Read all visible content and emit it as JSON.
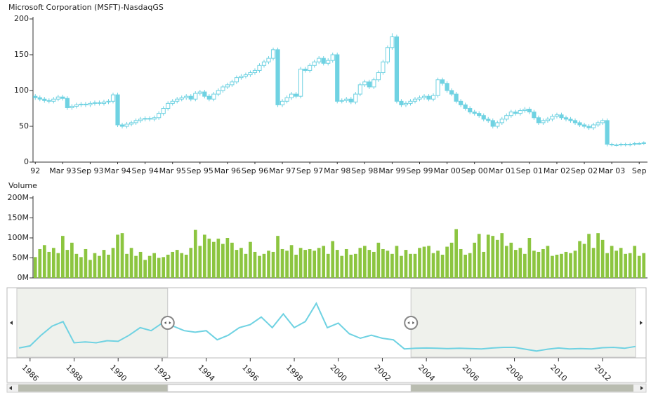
{
  "chart_data": [
    {
      "type": "candlestick",
      "title": "Microsoft Corporation (MSFT)-NasdaqGS",
      "color": "#6fd2e2",
      "categories": [
        "92",
        null,
        null,
        null,
        null,
        null,
        "Mar 93",
        null,
        null,
        null,
        null,
        null,
        "Sep 93",
        null,
        null,
        null,
        null,
        null,
        "Mar 94",
        null,
        null,
        null,
        null,
        null,
        "Sep 94",
        null,
        null,
        null,
        null,
        null,
        "Mar 95",
        null,
        null,
        null,
        null,
        null,
        "Sep 95",
        null,
        null,
        null,
        null,
        null,
        "Mar 96",
        null,
        null,
        null,
        null,
        null,
        "Sep 96",
        null,
        null,
        null,
        null,
        null,
        "Mar 97",
        null,
        null,
        null,
        null,
        null,
        "Sep 97",
        null,
        null,
        null,
        null,
        null,
        "Mar 98",
        null,
        null,
        null,
        null,
        null,
        "Sep 98",
        null,
        null,
        null,
        null,
        null,
        "Mar 99",
        null,
        null,
        null,
        null,
        null,
        "Sep 99",
        null,
        null,
        null,
        null,
        null,
        "Mar 00",
        null,
        null,
        null,
        null,
        null,
        "Sep 00",
        null,
        null,
        null,
        null,
        null,
        "Mar 01",
        null,
        null,
        null,
        null,
        null,
        "Sep 01",
        null,
        null,
        null,
        null,
        null,
        "Mar 02",
        null,
        null,
        null,
        null,
        null,
        "Sep 02",
        null,
        null,
        null,
        null,
        null,
        "Mar 03",
        null,
        null,
        null,
        null,
        null,
        "Sep",
        null
      ],
      "open": [
        92,
        90,
        88,
        86,
        85,
        88,
        91,
        89,
        76,
        78,
        80,
        81,
        80,
        82,
        83,
        82,
        84,
        85,
        94,
        52,
        50,
        53,
        55,
        58,
        60,
        61,
        60,
        62,
        68,
        75,
        82,
        85,
        88,
        90,
        92,
        88,
        96,
        98,
        92,
        88,
        95,
        100,
        105,
        108,
        112,
        118,
        120,
        122,
        125,
        128,
        135,
        140,
        145,
        157,
        80,
        85,
        90,
        95,
        92,
        130,
        128,
        135,
        140,
        145,
        138,
        142,
        150,
        85,
        86,
        88,
        84,
        95,
        108,
        112,
        105,
        115,
        125,
        140,
        160,
        175,
        85,
        80,
        82,
        85,
        88,
        90,
        92,
        88,
        93,
        115,
        110,
        100,
        95,
        85,
        80,
        75,
        70,
        68,
        65,
        60,
        58,
        50,
        55,
        60,
        65,
        70,
        68,
        72,
        74,
        70,
        62,
        55,
        58,
        60,
        64,
        66,
        62,
        60,
        58,
        55,
        52,
        50,
        48,
        52,
        55,
        58,
        25,
        24,
        24,
        25,
        24,
        25,
        26,
        26
      ],
      "high": [
        95,
        93,
        91,
        89,
        91,
        94,
        94,
        92,
        81,
        83,
        84,
        84,
        85,
        86,
        86,
        87,
        88,
        97,
        97,
        55,
        56,
        58,
        61,
        63,
        64,
        64,
        65,
        71,
        78,
        85,
        88,
        91,
        93,
        95,
        95,
        99,
        101,
        101,
        95,
        98,
        103,
        108,
        111,
        115,
        121,
        123,
        125,
        128,
        131,
        138,
        143,
        148,
        160,
        160,
        88,
        93,
        98,
        98,
        133,
        133,
        138,
        143,
        148,
        148,
        145,
        153,
        153,
        89,
        91,
        91,
        98,
        111,
        115,
        115,
        118,
        128,
        143,
        163,
        180,
        178,
        88,
        85,
        88,
        91,
        93,
        95,
        95,
        96,
        118,
        118,
        113,
        103,
        98,
        88,
        83,
        78,
        73,
        71,
        68,
        63,
        61,
        58,
        63,
        68,
        73,
        73,
        75,
        77,
        77,
        73,
        65,
        61,
        63,
        67,
        69,
        69,
        65,
        63,
        61,
        58,
        55,
        53,
        55,
        58,
        61,
        61,
        27,
        26,
        27,
        27,
        27,
        28,
        28,
        29
      ],
      "low": [
        87,
        85,
        83,
        82,
        82,
        85,
        86,
        73,
        73,
        75,
        77,
        77,
        77,
        79,
        79,
        79,
        81,
        82,
        49,
        47,
        47,
        50,
        52,
        55,
        57,
        57,
        57,
        59,
        65,
        72,
        79,
        82,
        85,
        87,
        85,
        85,
        93,
        89,
        85,
        85,
        92,
        97,
        102,
        105,
        109,
        115,
        117,
        119,
        122,
        125,
        132,
        137,
        142,
        77,
        77,
        82,
        87,
        89,
        89,
        125,
        125,
        132,
        137,
        135,
        135,
        139,
        82,
        82,
        83,
        81,
        81,
        92,
        105,
        102,
        102,
        112,
        122,
        137,
        157,
        82,
        77,
        77,
        79,
        82,
        85,
        87,
        85,
        85,
        90,
        107,
        97,
        92,
        82,
        77,
        72,
        67,
        65,
        62,
        57,
        55,
        47,
        47,
        52,
        57,
        62,
        65,
        65,
        69,
        67,
        59,
        52,
        52,
        55,
        57,
        61,
        59,
        57,
        55,
        52,
        49,
        47,
        45,
        45,
        49,
        52,
        22,
        22,
        22,
        22,
        22,
        22,
        23,
        24,
        24
      ],
      "close": [
        90,
        88,
        86,
        85,
        88,
        91,
        89,
        76,
        78,
        80,
        81,
        80,
        82,
        83,
        82,
        84,
        85,
        94,
        52,
        50,
        53,
        55,
        58,
        60,
        61,
        60,
        62,
        68,
        75,
        82,
        85,
        88,
        90,
        92,
        88,
        96,
        98,
        92,
        88,
        95,
        100,
        105,
        108,
        112,
        118,
        120,
        122,
        125,
        128,
        135,
        140,
        145,
        157,
        80,
        85,
        90,
        95,
        92,
        130,
        128,
        135,
        140,
        145,
        138,
        142,
        150,
        85,
        86,
        88,
        84,
        95,
        108,
        112,
        105,
        115,
        125,
        140,
        160,
        175,
        85,
        80,
        82,
        85,
        88,
        90,
        92,
        88,
        93,
        115,
        110,
        100,
        95,
        85,
        80,
        75,
        70,
        68,
        65,
        60,
        58,
        50,
        55,
        60,
        65,
        70,
        68,
        72,
        74,
        70,
        62,
        55,
        58,
        60,
        64,
        66,
        62,
        60,
        58,
        55,
        52,
        50,
        48,
        52,
        55,
        58,
        25,
        24,
        24,
        25,
        24,
        25,
        26,
        26,
        27
      ],
      "ylim": [
        0,
        200
      ],
      "yticks": [
        0,
        50,
        100,
        150,
        200
      ]
    },
    {
      "type": "bar",
      "title": "Volume",
      "color": "#8cc540",
      "values": [
        52,
        72,
        82,
        65,
        75,
        62,
        105,
        70,
        88,
        60,
        52,
        72,
        45,
        62,
        55,
        70,
        58,
        75,
        108,
        112,
        60,
        75,
        55,
        65,
        45,
        55,
        62,
        50,
        52,
        58,
        65,
        70,
        62,
        58,
        75,
        120,
        80,
        108,
        98,
        90,
        98,
        85,
        100,
        88,
        70,
        75,
        60,
        90,
        65,
        55,
        60,
        68,
        65,
        105,
        72,
        68,
        82,
        58,
        75,
        70,
        72,
        68,
        75,
        80,
        60,
        92,
        70,
        55,
        72,
        58,
        60,
        75,
        80,
        70,
        65,
        88,
        72,
        68,
        60,
        80,
        55,
        70,
        60,
        60,
        75,
        78,
        80,
        62,
        68,
        58,
        78,
        88,
        122,
        72,
        58,
        62,
        88,
        110,
        65,
        108,
        105,
        95,
        112,
        80,
        88,
        70,
        75,
        60,
        100,
        68,
        65,
        72,
        80,
        55,
        58,
        60,
        65,
        62,
        68,
        92,
        85,
        110,
        75,
        112,
        95,
        62,
        80,
        68,
        75,
        60,
        62,
        80,
        55,
        62
      ],
      "ylim": [
        0,
        200
      ],
      "yticks": [
        {
          "value": 0,
          "label": "0M"
        },
        {
          "value": 50,
          "label": "50M"
        },
        {
          "value": 100,
          "label": "100M"
        },
        {
          "value": 150,
          "label": "150M"
        },
        {
          "value": 200,
          "label": "200M"
        }
      ]
    },
    {
      "type": "line",
      "color": "#6fd2e2",
      "x": [
        1985.5,
        1986,
        1986.5,
        1987,
        1987.5,
        1988,
        1988.5,
        1989,
        1989.5,
        1990,
        1990.5,
        1991,
        1991.5,
        1992,
        1992.5,
        1993,
        1993.5,
        1994,
        1994.5,
        1995,
        1995.5,
        1996,
        1996.5,
        1997,
        1997.5,
        1998,
        1998.5,
        1999,
        1999.5,
        2000,
        2000.5,
        2001,
        2001.5,
        2002,
        2002.5,
        2003,
        2003.5,
        2004,
        2004.5,
        2005,
        2005.5,
        2006,
        2006.5,
        2007,
        2007.5,
        2008,
        2008.5,
        2009,
        2009.5,
        2010,
        2010.5,
        2011,
        2011.5,
        2012,
        2012.5,
        2013,
        2013.5
      ],
      "values": [
        28,
        35,
        70,
        100,
        115,
        45,
        48,
        45,
        52,
        50,
        70,
        95,
        85,
        110,
        100,
        85,
        80,
        85,
        55,
        70,
        95,
        105,
        130,
        95,
        140,
        95,
        115,
        175,
        95,
        110,
        75,
        60,
        70,
        60,
        55,
        25,
        27,
        28,
        27,
        26,
        27,
        26,
        25,
        28,
        30,
        30,
        24,
        18,
        24,
        28,
        25,
        26,
        25,
        29,
        30,
        27,
        33
      ],
      "xlim": [
        1985.4,
        2013.5
      ],
      "ylim": [
        0,
        215
      ],
      "xticks": [
        1986,
        1988,
        1990,
        1992,
        1994,
        1996,
        1998,
        2000,
        2002,
        2004,
        2006,
        2008,
        2010,
        2012
      ],
      "selection": [
        1992.25,
        2003.3
      ]
    }
  ]
}
